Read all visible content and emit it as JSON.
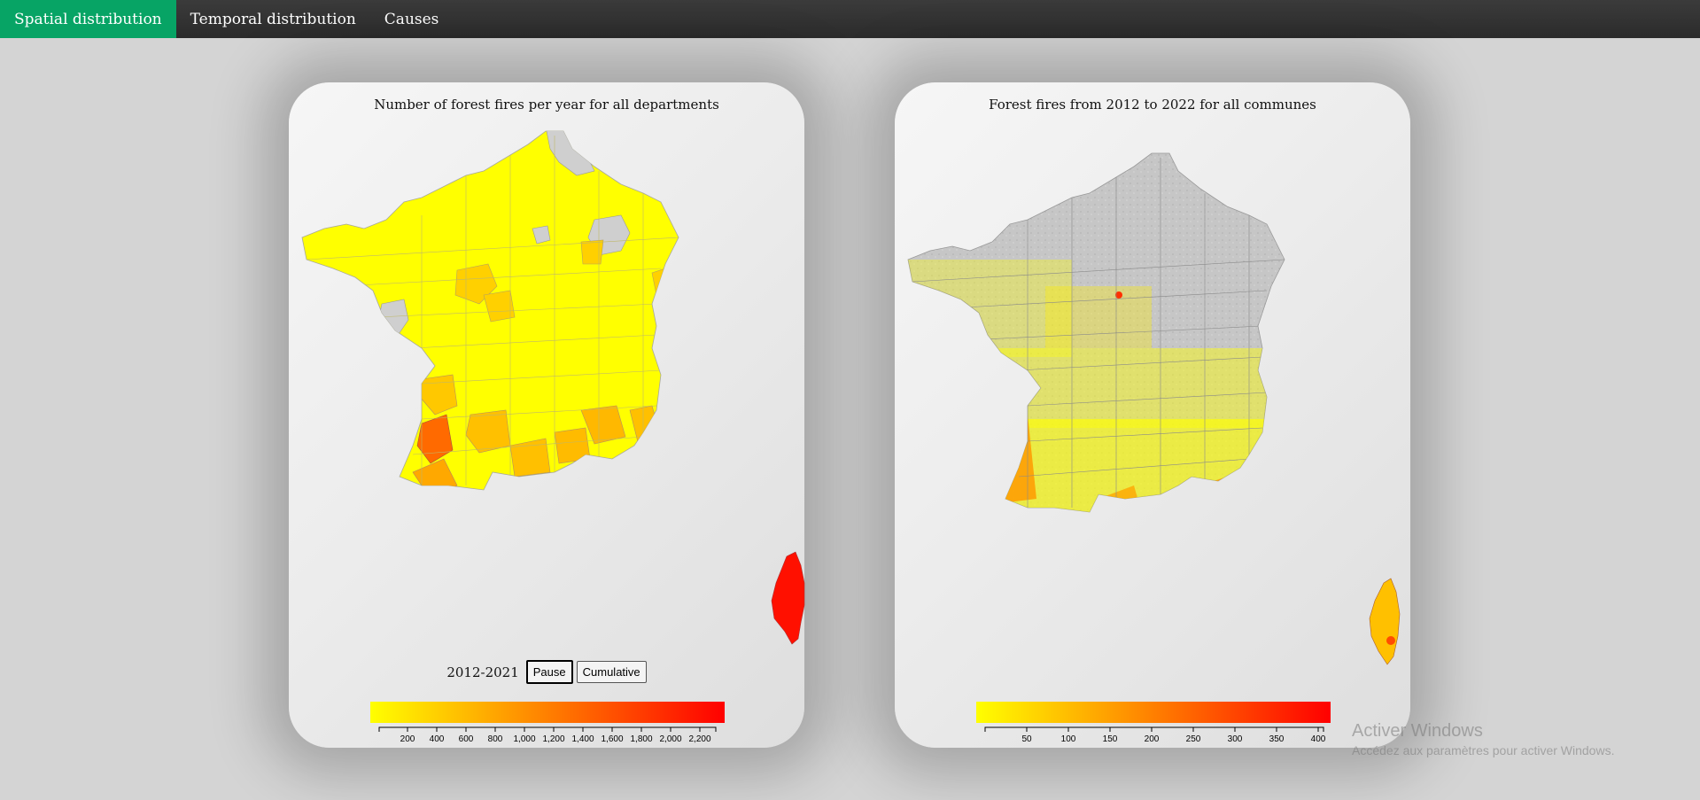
{
  "nav": {
    "items": [
      {
        "label": "Spatial distribution",
        "active": true
      },
      {
        "label": "Temporal distribution",
        "active": false
      },
      {
        "label": "Causes",
        "active": false
      }
    ],
    "active_color": "#07a465"
  },
  "left_panel": {
    "title": "Number of forest fires per year for all departments",
    "year_range": "2012-2021",
    "pause_label": "Pause",
    "cumulative_label": "Cumulative",
    "legend": {
      "colors": [
        "#ffff00",
        "#ff0000"
      ],
      "ticks": [
        "200",
        "400",
        "600",
        "800",
        "1,000",
        "1,200",
        "1,400",
        "1,600",
        "1,800",
        "2,000",
        "2,200"
      ]
    }
  },
  "right_panel": {
    "title": "Forest fires from 2012 to 2022 for all communes",
    "legend": {
      "colors": [
        "#ffff00",
        "#ff0000"
      ],
      "ticks": [
        "50",
        "100",
        "150",
        "200",
        "250",
        "300",
        "350",
        "400"
      ]
    }
  },
  "watermark": {
    "title": "Activer Windows",
    "subtitle": "Accédez aux paramètres pour activer Windows."
  }
}
